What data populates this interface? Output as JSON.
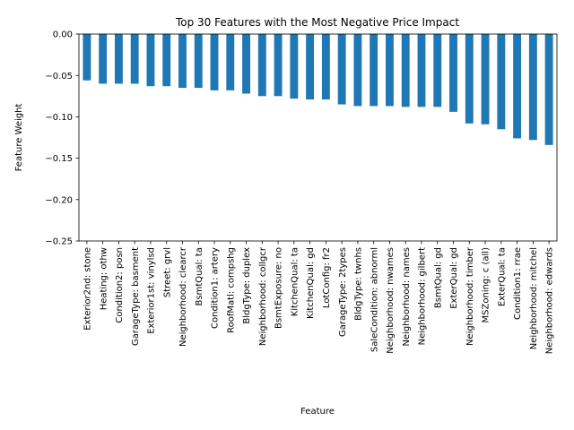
{
  "chart_data": {
    "type": "bar",
    "title": "Top 30 Features with the Most Negative Price Impact",
    "xlabel": "Feature",
    "ylabel": "Feature Weight",
    "ylim": [
      -0.25,
      0.0
    ],
    "yticks": [
      0.0,
      -0.05,
      -0.1,
      -0.15,
      -0.2,
      -0.25
    ],
    "ytick_labels": [
      "0.00",
      "−0.05",
      "−0.10",
      "−0.15",
      "−0.20",
      "−0.25"
    ],
    "grid": false,
    "bar_color": "#1f77b4",
    "categories": [
      "Exterior2nd: stone",
      "Heating: othw",
      "Condition2: posn",
      "GarageType: basment",
      "Exterior1st: vinylsd",
      "Street: grvl",
      "Neighborhood: clearcr",
      "BsmtQual: ta",
      "Condition1: artery",
      "RoofMatl: compshg",
      "BldgType: duplex",
      "Neighborhood: collgcr",
      "BsmtExposure: no",
      "KitchenQual: ta",
      "KitchenQual: gd",
      "LotConfig: fr2",
      "GarageType: 2types",
      "BldgType: twnhs",
      "SaleCondition: abnorml",
      "Neighborhood: nwames",
      "Neighborhood: names",
      "Neighborhood: gilbert",
      "BsmtQual: gd",
      "ExterQual: gd",
      "Neighborhood: timber",
      "MSZoning: c (all)",
      "ExterQual: ta",
      "Condition1: rrae",
      "Neighborhood: mitchel",
      "Neighborhood: edwards"
    ],
    "values": [
      -0.056,
      -0.06,
      -0.06,
      -0.06,
      -0.063,
      -0.063,
      -0.065,
      -0.065,
      -0.068,
      -0.068,
      -0.072,
      -0.075,
      -0.075,
      -0.078,
      -0.079,
      -0.079,
      -0.085,
      -0.087,
      -0.087,
      -0.087,
      -0.088,
      -0.088,
      -0.088,
      -0.094,
      -0.108,
      -0.109,
      -0.115,
      -0.126,
      -0.128,
      -0.134
    ]
  }
}
